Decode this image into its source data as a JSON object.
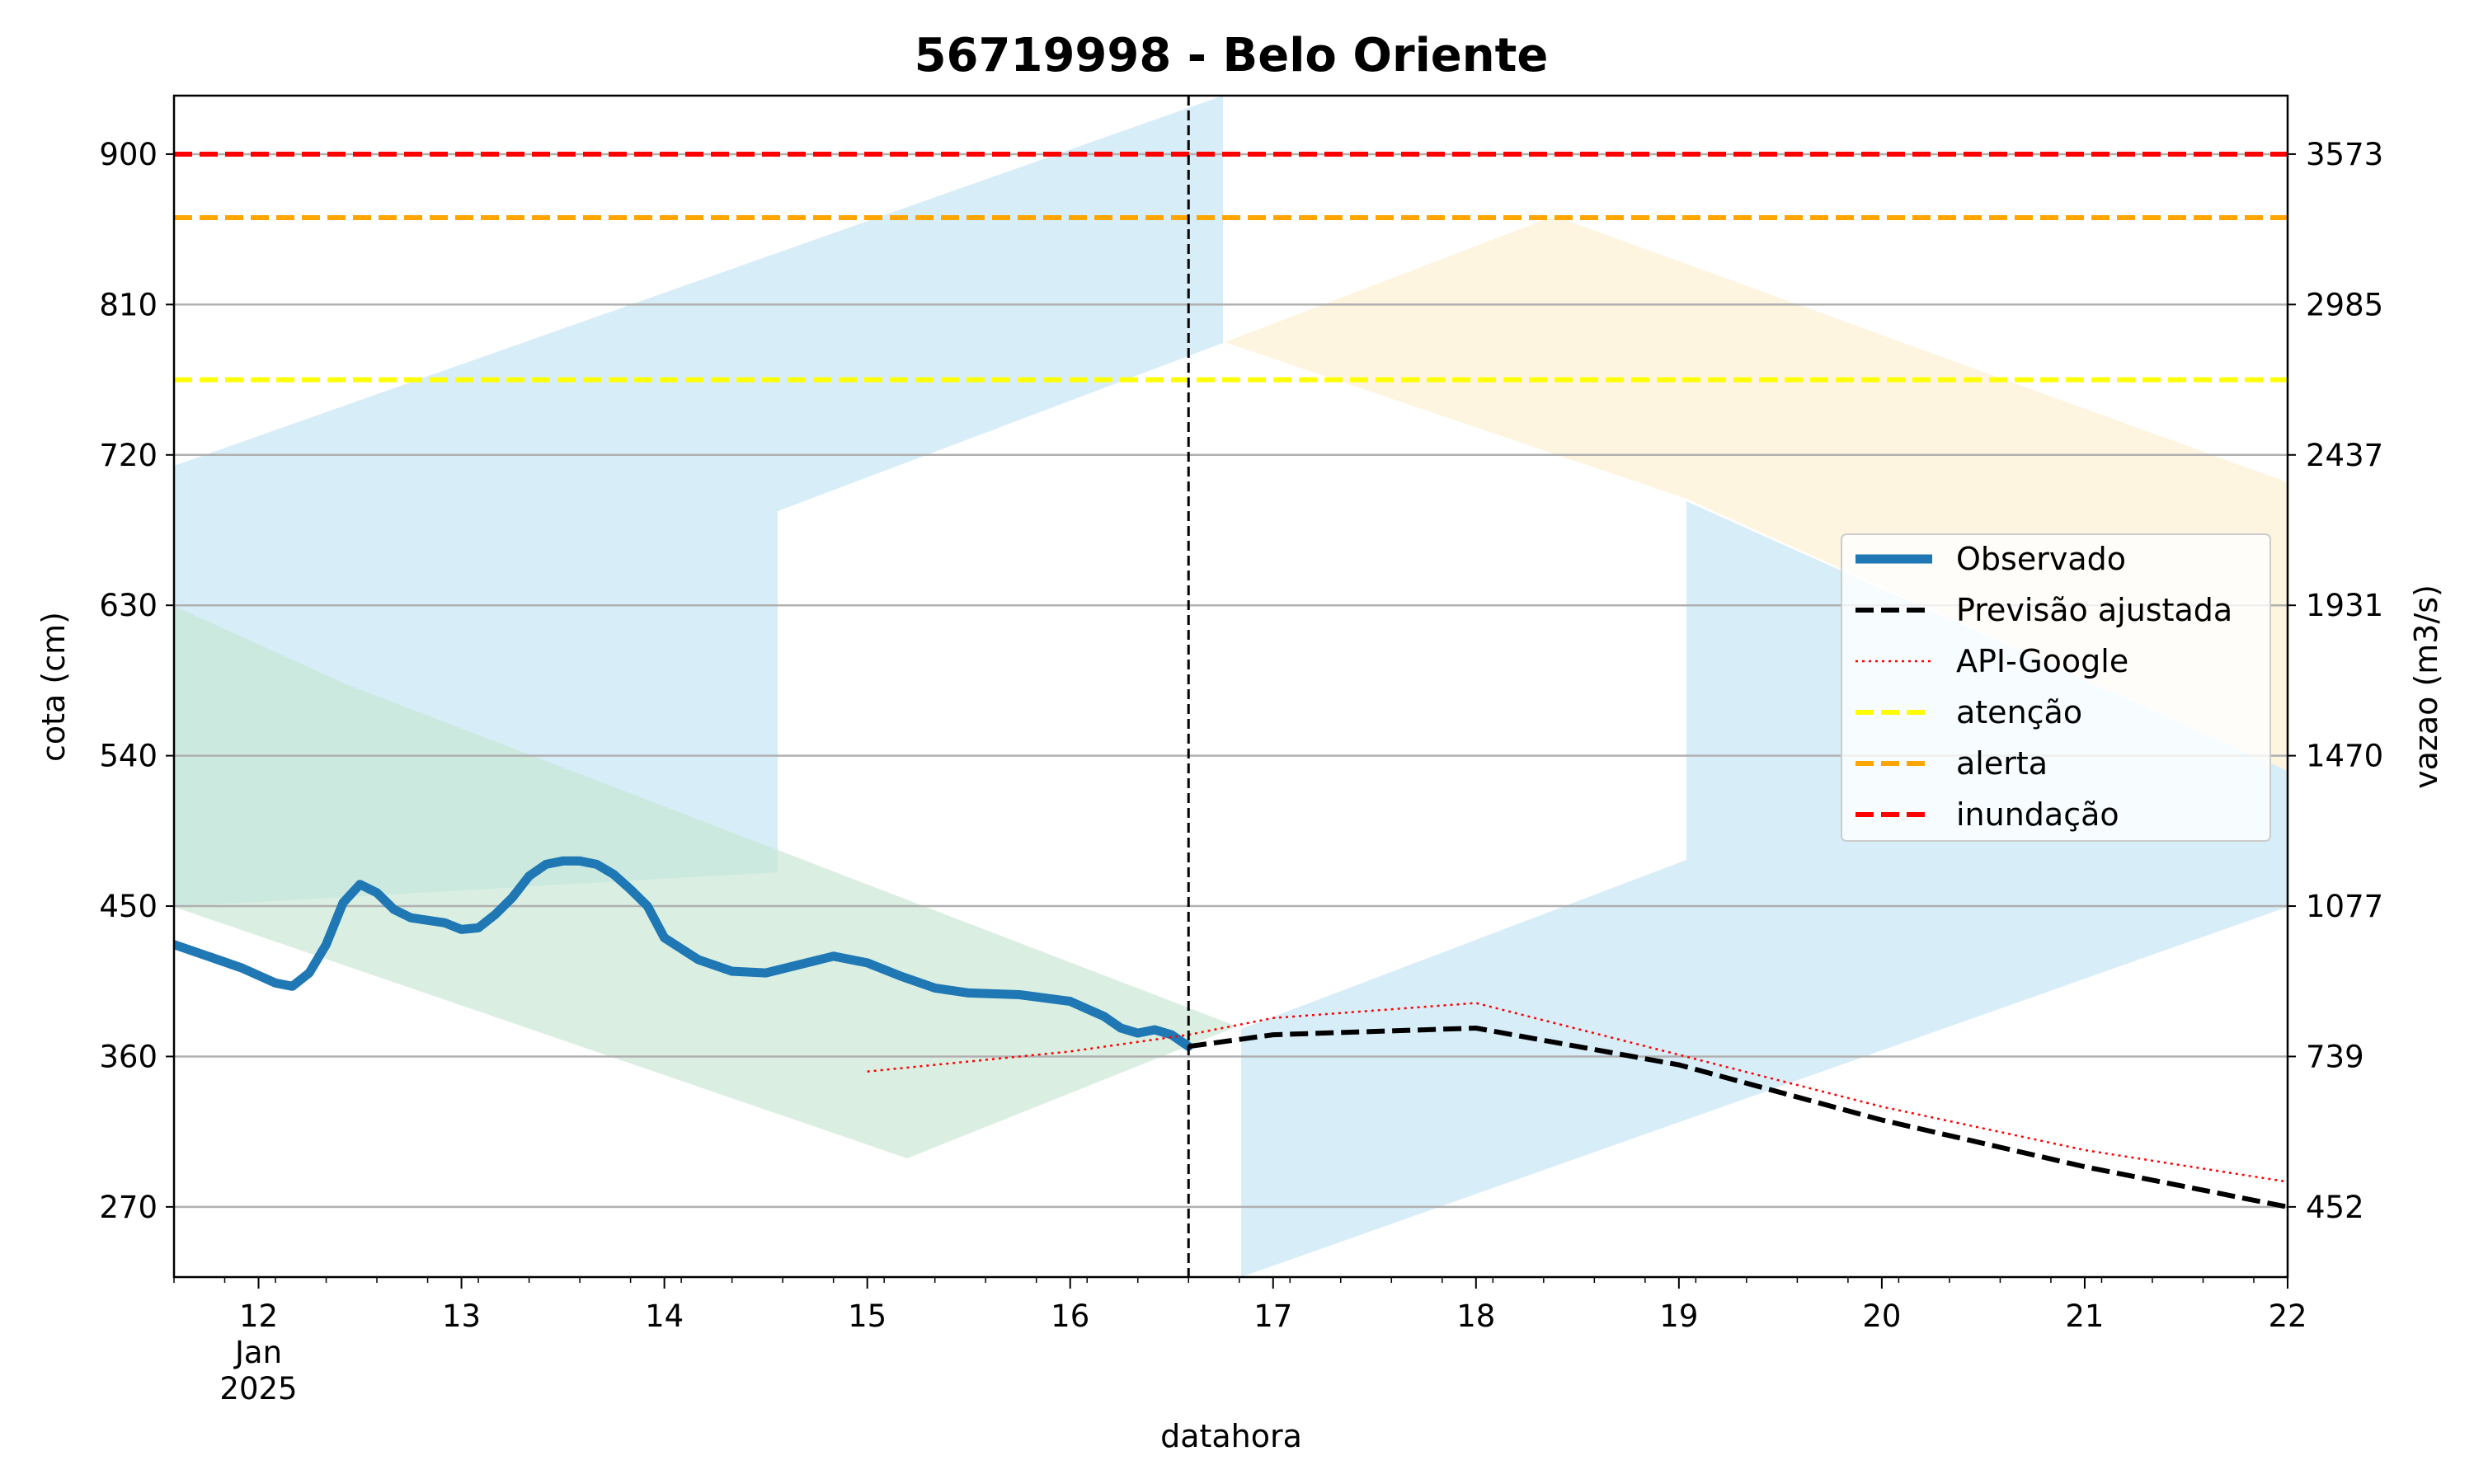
{
  "chart_data": {
    "type": "line",
    "title": "56719998 - Belo Oriente",
    "xlabel": "datahora",
    "ylabel": "cota (cm)",
    "y2label": "vazao (m3/s)",
    "x_domain": [
      "2025-01-11T14:00",
      "2025-01-22T00:00"
    ],
    "ylim": [
      228,
      935
    ],
    "x_ticks": [
      {
        "label": "12",
        "sub1": "Jan",
        "sub2": "2025",
        "at": "2025-01-12T00:00"
      },
      {
        "label": "13",
        "at": "2025-01-13T00:00"
      },
      {
        "label": "14",
        "at": "2025-01-14T00:00"
      },
      {
        "label": "15",
        "at": "2025-01-15T00:00"
      },
      {
        "label": "16",
        "at": "2025-01-16T00:00"
      },
      {
        "label": "17",
        "at": "2025-01-17T00:00"
      },
      {
        "label": "18",
        "at": "2025-01-18T00:00"
      },
      {
        "label": "19",
        "at": "2025-01-19T00:00"
      },
      {
        "label": "20",
        "at": "2025-01-20T00:00"
      },
      {
        "label": "21",
        "at": "2025-01-21T00:00"
      },
      {
        "label": "22",
        "at": "2025-01-22T00:00"
      }
    ],
    "y_ticks": [
      {
        "cota": 270,
        "vazao": "452"
      },
      {
        "cota": 360,
        "vazao": "739"
      },
      {
        "cota": 450,
        "vazao": "1077"
      },
      {
        "cota": 540,
        "vazao": "1470"
      },
      {
        "cota": 630,
        "vazao": "1931"
      },
      {
        "cota": 720,
        "vazao": "2437"
      },
      {
        "cota": 810,
        "vazao": "2985"
      },
      {
        "cota": 900,
        "vazao": "3573"
      }
    ],
    "grid": "horizontal",
    "legend_position": "center-right",
    "now_marker": "2025-01-16T14:00",
    "series": [
      {
        "name": "Observado",
        "style": "solid",
        "color": "#1f77b4",
        "points": [
          [
            "2025-01-11T14:00",
            427
          ],
          [
            "2025-01-11T18:00",
            420
          ],
          [
            "2025-01-11T22:00",
            413
          ],
          [
            "2025-01-12T02:00",
            404
          ],
          [
            "2025-01-12T04:00",
            402
          ],
          [
            "2025-01-12T06:00",
            410
          ],
          [
            "2025-01-12T08:00",
            427
          ],
          [
            "2025-01-12T10:00",
            452
          ],
          [
            "2025-01-12T12:00",
            463
          ],
          [
            "2025-01-12T14:00",
            458
          ],
          [
            "2025-01-12T16:00",
            448
          ],
          [
            "2025-01-12T18:00",
            443
          ],
          [
            "2025-01-12T22:00",
            440
          ],
          [
            "2025-01-13T00:00",
            436
          ],
          [
            "2025-01-13T02:00",
            437
          ],
          [
            "2025-01-13T04:00",
            445
          ],
          [
            "2025-01-13T06:00",
            455
          ],
          [
            "2025-01-13T08:00",
            468
          ],
          [
            "2025-01-13T10:00",
            475
          ],
          [
            "2025-01-13T12:00",
            477
          ],
          [
            "2025-01-13T14:00",
            477
          ],
          [
            "2025-01-13T16:00",
            475
          ],
          [
            "2025-01-13T18:00",
            469
          ],
          [
            "2025-01-13T20:00",
            460
          ],
          [
            "2025-01-13T22:00",
            450
          ],
          [
            "2025-01-14T00:00",
            431
          ],
          [
            "2025-01-14T04:00",
            418
          ],
          [
            "2025-01-14T08:00",
            411
          ],
          [
            "2025-01-14T12:00",
            410
          ],
          [
            "2025-01-14T16:00",
            415
          ],
          [
            "2025-01-14T20:00",
            420
          ],
          [
            "2025-01-15T00:00",
            416
          ],
          [
            "2025-01-15T04:00",
            408
          ],
          [
            "2025-01-15T08:00",
            401
          ],
          [
            "2025-01-15T12:00",
            398
          ],
          [
            "2025-01-15T18:00",
            397
          ],
          [
            "2025-01-16T00:00",
            393
          ],
          [
            "2025-01-16T04:00",
            384
          ],
          [
            "2025-01-16T06:00",
            377
          ],
          [
            "2025-01-16T08:00",
            374
          ],
          [
            "2025-01-16T10:00",
            376
          ],
          [
            "2025-01-16T12:00",
            373
          ],
          [
            "2025-01-16T14:00",
            366
          ]
        ]
      },
      {
        "name": "Previsão ajustada",
        "style": "dashed",
        "color": "#000000",
        "points": [
          [
            "2025-01-16T14:00",
            366
          ],
          [
            "2025-01-17T00:00",
            373
          ],
          [
            "2025-01-18T00:00",
            377
          ],
          [
            "2025-01-19T00:00",
            355
          ],
          [
            "2025-01-20T00:00",
            322
          ],
          [
            "2025-01-21T00:00",
            294
          ],
          [
            "2025-01-22T00:00",
            270
          ]
        ]
      },
      {
        "name": "API-Google",
        "style": "dotted",
        "color": "#ff0000",
        "points": [
          [
            "2025-01-15T00:00",
            351
          ],
          [
            "2025-01-16T00:00",
            363
          ],
          [
            "2025-01-16T14:00",
            373
          ],
          [
            "2025-01-17T00:00",
            383
          ],
          [
            "2025-01-18T00:00",
            392
          ],
          [
            "2025-01-19T00:00",
            361
          ],
          [
            "2025-01-20T00:00",
            330
          ],
          [
            "2025-01-21T00:00",
            304
          ],
          [
            "2025-01-22T00:00",
            285
          ]
        ]
      },
      {
        "name": "atenção",
        "style": "dashed",
        "color": "#ffff00",
        "level": 765
      },
      {
        "name": "alerta",
        "style": "dashed",
        "color": "#ffa500",
        "level": 862
      },
      {
        "name": "inundação",
        "style": "dashed",
        "color": "#ff0000",
        "level": 900
      }
    ]
  }
}
